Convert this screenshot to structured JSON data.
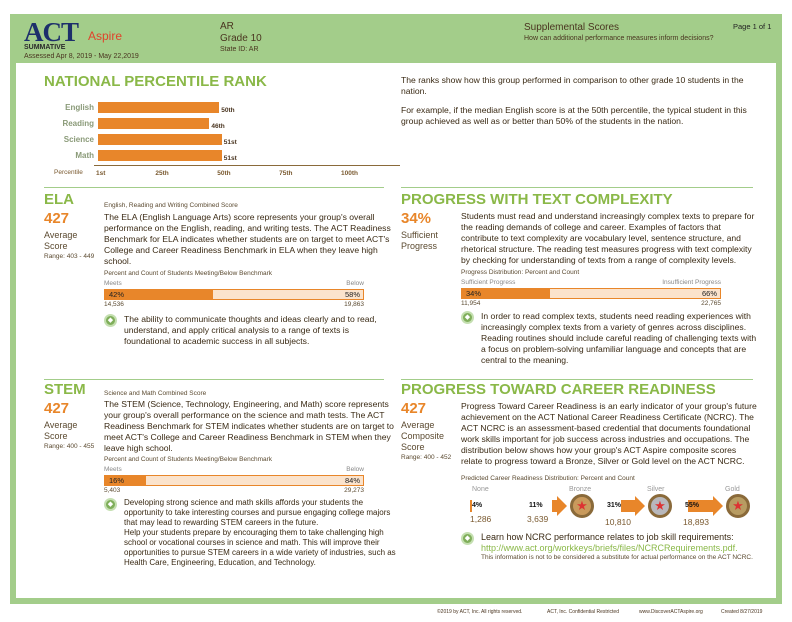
{
  "header": {
    "logo_act": "ACT",
    "logo_aspire": "Aspire",
    "summative": "SUMMATIVE",
    "assessed": "Assessed Apr 8, 2019 - May 22,2019",
    "state": "AR",
    "grade": "Grade 10",
    "state_id": "State ID: AR",
    "report_title": "Supplemental Scores",
    "report_subtitle": "How can additional performance measures inform decisions?",
    "page": "Page 1 of 1"
  },
  "npr": {
    "title": "NATIONAL PERCENTILE RANK",
    "axis_label": "Percentile",
    "ticks": [
      "1st",
      "25th",
      "50th",
      "75th",
      "100th"
    ],
    "rows": [
      {
        "subject": "English",
        "value": 50,
        "label": "50th"
      },
      {
        "subject": "Reading",
        "value": 46,
        "label": "46th"
      },
      {
        "subject": "Science",
        "value": 51,
        "label": "51st"
      },
      {
        "subject": "Math",
        "value": 51,
        "label": "51st"
      }
    ],
    "desc1": "The ranks show how this group performed in comparison to other grade 10 students in the nation.",
    "desc2": "For example, if the median English score is at the 50th percentile, the typical student in this group achieved as well as or better than 50% of the students in the nation."
  },
  "ela": {
    "title": "ELA",
    "score": "427",
    "score_label": "Average Score",
    "range": "Range: 403 - 449",
    "subtitle": "English, Reading and Writing Combined Score",
    "body": "The ELA (English Language Arts) score represents your group's overall performance on the English, reading, and writing tests. The ACT Readiness Benchmark for ELA indicates whether students are on target to meet ACT's College and Career Readiness Benchmark in ELA when they leave high school.",
    "bar_caption": "Percent and Count of Students Meeting/Below Benchmark",
    "left_label": "Meets",
    "right_label": "Below",
    "left_pct": 42,
    "left_pct_label": "42%",
    "right_pct_label": "58%",
    "left_count": "14,536",
    "right_count": "19,863",
    "note": "The ability to communicate thoughts and ideas clearly and to read, understand, and apply critical analysis to a range of texts is foundational to academic success in all subjects."
  },
  "ptc": {
    "title": "PROGRESS WITH TEXT COMPLEXITY",
    "score": "34%",
    "score_label": "Sufficient Progress",
    "body": "Students must read and understand increasingly complex texts to prepare for the reading demands of college and career. Examples of factors that contribute to text complexity are vocabulary level, sentence structure, and rhetorical structure. The reading test measures progress with text complexity by checking for understanding of texts from a range of complexity levels.",
    "bar_caption": "Progress Distribution: Percent and Count",
    "left_label": "Sufficient Progress",
    "right_label": "Insufficient Progress",
    "left_pct": 34,
    "left_pct_label": "34%",
    "right_pct_label": "66%",
    "left_count": "11,954",
    "right_count": "22,765",
    "note": "In order to read complex texts, students need reading experiences with increasingly complex texts from a variety of genres across disciplines. Reading routines should include careful reading of challenging texts with a focus on problem-solving unfamiliar language and concepts that are central to the meaning."
  },
  "stem": {
    "title": "STEM",
    "score": "427",
    "score_label": "Average Score",
    "range": "Range: 400 - 455",
    "subtitle": "Science and Math Combined Score",
    "body": "The STEM (Science, Technology, Engineering, and Math) score represents your group's overall performance on the science and math tests. The ACT Readiness Benchmark for STEM indicates whether students are on target to meet ACT's College and Career Readiness Benchmark in STEM when they leave high school.",
    "bar_caption": "Percent and Count of Students Meeting/Below Benchmark",
    "left_label": "Meets",
    "right_label": "Below",
    "left_pct": 16,
    "left_pct_label": "16%",
    "right_pct_label": "84%",
    "left_count": "5,403",
    "right_count": "29,273",
    "note": "Developing strong science and math skills affords your students the opportunity to take interesting courses and pursue engaging college majors that may lead to rewarding STEM careers in the future.",
    "note2": "Help your students prepare by encouraging them to take challenging high school or vocational courses in science and math. This will improve their opportunities to pursue STEM careers in a wide variety of industries, such as Health Care, Engineering, Education, and Technology."
  },
  "pcr": {
    "title": "PROGRESS TOWARD CAREER READINESS",
    "score": "427",
    "score_label": "Average Composite Score",
    "range": "Range: 400 - 452",
    "body": "Progress Toward Career Readiness is an early indicator of your group's future achievement on the ACT National Career Readiness Certificate (NCRC). The ACT NCRC is an assessment-based credential that documents foundational work skills important for job success across industries and occupations. The distribution below shows how your group's ACT Aspire composite scores relate to progress toward a Bronze, Silver or Gold level on the ACT NCRC.",
    "dist_caption": "Predicted Career Readiness Distribution: Percent and Count",
    "levels": [
      {
        "name": "None",
        "pct": 4,
        "pct_label": "4%",
        "count": "1,286"
      },
      {
        "name": "Bronze",
        "pct": 11,
        "pct_label": "11%",
        "count": "3,639",
        "color": "#c99a5c"
      },
      {
        "name": "Silver",
        "pct": 31,
        "pct_label": "31%",
        "count": "10,810",
        "color": "#b8b8bc"
      },
      {
        "name": "Gold",
        "pct": 55,
        "pct_label": "55%",
        "count": "18,893",
        "color": "#b89c62"
      }
    ],
    "link_text": "Learn how NCRC performance relates to job skill requirements:",
    "link_url": "http://www.act.org/workkeys/briefs/files/NCRCRequirements.pdf.",
    "disclaimer": "This information is not to be considered a substitute for actual performance on the ACT NCRC."
  },
  "footer": {
    "copyright": "©2019 by ACT, Inc. All rights reserved.",
    "confidential": "ACT, Inc. Confidential Restricted",
    "website": "www.DiscoverACTAspire.org",
    "created": "Created 8/27/2019"
  }
}
